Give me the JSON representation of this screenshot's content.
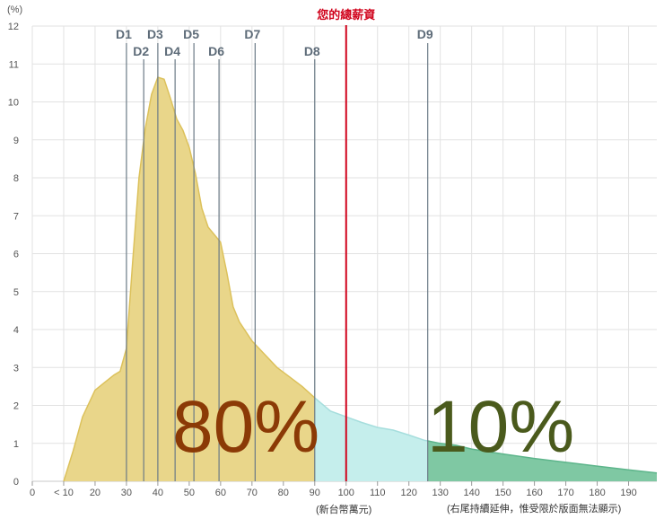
{
  "chart_data": {
    "type": "area",
    "y_unit_label": "(%)",
    "x_unit_label": "(新台幣萬元)",
    "x_note": "(右尾持續延伸，惟受限於版面無法顯示)",
    "xlim": [
      0,
      199
    ],
    "ylim": [
      0,
      12
    ],
    "y_ticks": [
      0,
      1,
      2,
      3,
      4,
      5,
      6,
      7,
      8,
      9,
      10,
      11,
      12
    ],
    "x_ticks": [
      {
        "value": 0,
        "label": "0"
      },
      {
        "value": 10,
        "label": "< 10"
      },
      {
        "value": 20,
        "label": "20"
      },
      {
        "value": 30,
        "label": "30"
      },
      {
        "value": 40,
        "label": "40"
      },
      {
        "value": 50,
        "label": "50"
      },
      {
        "value": 60,
        "label": "60"
      },
      {
        "value": 70,
        "label": "70"
      },
      {
        "value": 80,
        "label": "80"
      },
      {
        "value": 90,
        "label": "90"
      },
      {
        "value": 100,
        "label": "100"
      },
      {
        "value": 110,
        "label": "110"
      },
      {
        "value": 120,
        "label": "120"
      },
      {
        "value": 130,
        "label": "130"
      },
      {
        "value": 140,
        "label": "140"
      },
      {
        "value": 150,
        "label": "150"
      },
      {
        "value": 160,
        "label": "160"
      },
      {
        "value": 170,
        "label": "170"
      },
      {
        "value": 180,
        "label": "180"
      },
      {
        "value": 190,
        "label": "190"
      }
    ],
    "grid": true,
    "series": [
      {
        "x": [
          10,
          13,
          16,
          20,
          23,
          26,
          28,
          30,
          32,
          34,
          36,
          38,
          40,
          42,
          44,
          46,
          48,
          50,
          52,
          54,
          56,
          58,
          60,
          62,
          64,
          66,
          70,
          74,
          78,
          82,
          86,
          90,
          95,
          100,
          105,
          110,
          115,
          120,
          125,
          130,
          135,
          140,
          150,
          160,
          170,
          180,
          190,
          199
        ],
        "y": [
          0,
          0.8,
          1.7,
          2.4,
          2.6,
          2.8,
          2.9,
          3.5,
          5.8,
          8.0,
          9.3,
          10.2,
          10.65,
          10.6,
          10.1,
          9.55,
          9.25,
          8.8,
          8.1,
          7.2,
          6.7,
          6.5,
          6.3,
          5.5,
          4.6,
          4.2,
          3.7,
          3.35,
          3.0,
          2.75,
          2.5,
          2.2,
          1.85,
          1.7,
          1.55,
          1.42,
          1.35,
          1.22,
          1.08,
          1.0,
          0.95,
          0.85,
          0.72,
          0.6,
          0.5,
          0.4,
          0.3,
          0.22
        ]
      }
    ],
    "deciles": [
      {
        "label": "D1",
        "value": 30
      },
      {
        "label": "D2",
        "value": 35.5
      },
      {
        "label": "D3",
        "value": 40
      },
      {
        "label": "D4",
        "value": 45.5
      },
      {
        "label": "D5",
        "value": 51.5
      },
      {
        "label": "D6",
        "value": 59.5
      },
      {
        "label": "D7",
        "value": 71
      },
      {
        "label": "D8",
        "value": 90
      },
      {
        "label": "D9",
        "value": 126
      }
    ],
    "your_salary": {
      "label": "您的總薪資",
      "value": 100
    },
    "regions": [
      {
        "from": 10,
        "to": 90,
        "color": "#e9d68a",
        "edge": "#dcc15b"
      },
      {
        "from": 90,
        "to": 126,
        "color": "#c5eeec",
        "edge": "#a6dedd"
      },
      {
        "from": 126,
        "to": 199,
        "color": "#7fc8a3",
        "edge": "#5db58b"
      }
    ],
    "percent_labels": [
      {
        "text": "80%",
        "color": "#8b3a06"
      },
      {
        "text": "10%",
        "color": "#4a5a1c"
      }
    ],
    "colors": {
      "decile_line": "#6b7a86",
      "your_line": "#d0021b",
      "grid": "#e2e2e2"
    }
  }
}
